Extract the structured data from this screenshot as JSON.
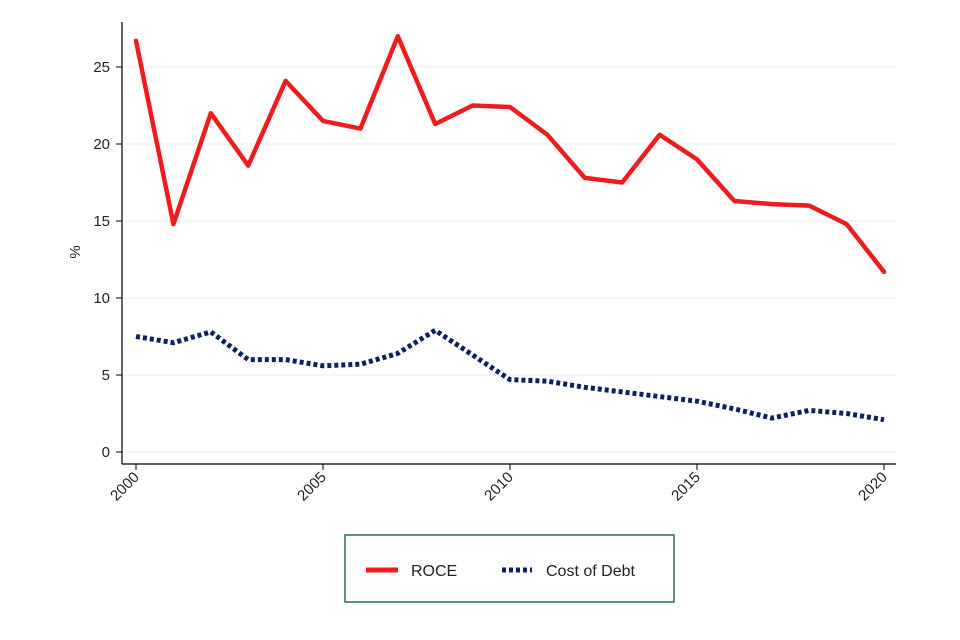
{
  "chart_data": {
    "type": "line",
    "title": "",
    "xlabel": "",
    "ylabel": "%",
    "xlim": [
      2000,
      2020
    ],
    "ylim": [
      0,
      28
    ],
    "x": [
      2000,
      2001,
      2002,
      2003,
      2004,
      2005,
      2006,
      2007,
      2008,
      2009,
      2010,
      2011,
      2012,
      2013,
      2014,
      2015,
      2016,
      2017,
      2018,
      2019,
      2020
    ],
    "x_ticks": [
      2000,
      2005,
      2010,
      2015,
      2020
    ],
    "x_tick_labels": [
      "2000",
      "2005",
      "2010",
      "2015",
      "2020"
    ],
    "y_ticks": [
      0,
      5,
      10,
      15,
      20,
      25
    ],
    "y_tick_labels": [
      "0",
      "5",
      "10",
      "15",
      "20",
      "25"
    ],
    "grid": true,
    "legend_position": "bottom",
    "series": [
      {
        "name": "ROCE",
        "color": "#ee1c1c",
        "style": "solid",
        "values": [
          26.7,
          14.8,
          22.0,
          18.6,
          24.1,
          21.5,
          21.0,
          27.0,
          21.3,
          22.5,
          22.4,
          20.6,
          17.8,
          17.5,
          20.6,
          19.0,
          16.3,
          16.1,
          16.0,
          14.8,
          11.7
        ]
      },
      {
        "name": "Cost of Debt",
        "color": "#0d2260",
        "style": "dotted",
        "values": [
          7.5,
          7.1,
          7.8,
          6.0,
          6.0,
          5.6,
          5.7,
          6.4,
          7.9,
          6.3,
          4.7,
          4.6,
          4.2,
          3.9,
          3.6,
          3.3,
          2.8,
          2.2,
          2.7,
          2.5,
          2.1
        ]
      }
    ]
  }
}
